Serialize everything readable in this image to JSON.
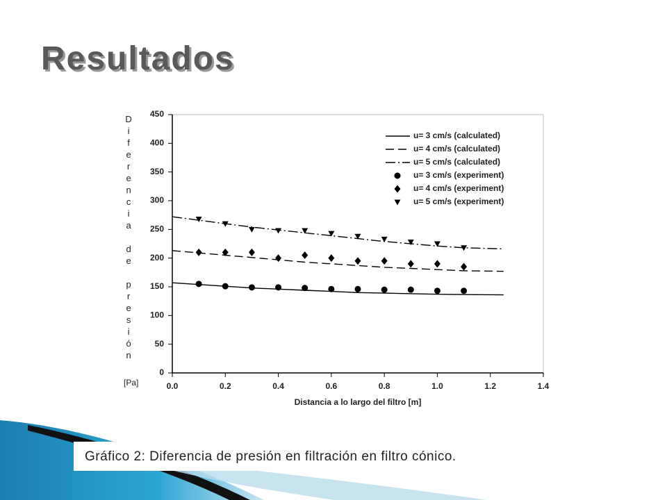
{
  "title": "Resultados",
  "caption": "Gráfico 2: Diferencia de presión en filtración en filtro cónico.",
  "chart_data": {
    "type": "line",
    "ylabel": "Diferencia de presión",
    "yunit": "[Pa]",
    "xlabel": "Distancia a lo largo del filtro [m]",
    "xlim": [
      0,
      1.4
    ],
    "ylim": [
      0,
      450
    ],
    "xticks": [
      {
        "value": 0,
        "label": "0.0"
      },
      0.2,
      0.4,
      0.6,
      0.8,
      {
        "value": 1,
        "label": "1.0"
      },
      1.2,
      1.4
    ],
    "yticks": [
      0,
      50,
      100,
      150,
      200,
      250,
      300,
      350,
      400,
      450
    ],
    "legend": "upper-right",
    "series": [
      {
        "name": "u= 3 cm/s (calculated)",
        "color": "#000000",
        "style": "solid",
        "x": [
          0,
          0.1,
          0.2,
          0.3,
          0.4,
          0.5,
          0.6,
          0.7,
          0.8,
          0.9,
          1.0,
          1.1,
          1.25
        ],
        "values": [
          157,
          154,
          151,
          148,
          146,
          144,
          142,
          140,
          139,
          138,
          137,
          136.5,
          136
        ]
      },
      {
        "name": "u= 4 cm/s (calculated)",
        "color": "#000000",
        "style": "dashed",
        "x": [
          0,
          0.1,
          0.2,
          0.3,
          0.4,
          0.5,
          0.6,
          0.7,
          0.8,
          0.9,
          1.0,
          1.1,
          1.25
        ],
        "values": [
          213,
          209,
          205,
          201,
          197,
          193,
          190,
          187,
          184,
          182,
          180,
          178,
          177
        ]
      },
      {
        "name": "u= 5 cm/s (calculated)",
        "color": "#000000",
        "style": "dashdot",
        "x": [
          0,
          0.1,
          0.2,
          0.3,
          0.4,
          0.5,
          0.6,
          0.7,
          0.8,
          0.9,
          1.0,
          1.1,
          1.25
        ],
        "values": [
          272,
          266,
          260,
          254,
          249,
          244,
          239,
          234,
          229,
          225,
          221,
          218,
          216
        ]
      },
      {
        "name": "u= 3 cm/s (experiment)",
        "color": "#000000",
        "marker": "circle",
        "x": [
          0.1,
          0.2,
          0.3,
          0.4,
          0.5,
          0.6,
          0.7,
          0.8,
          0.9,
          1.0,
          1.1
        ],
        "values": [
          155,
          151,
          149,
          149,
          148,
          146,
          146,
          145,
          145,
          143,
          143
        ]
      },
      {
        "name": "u= 4 cm/s (experiment)",
        "color": "#000000",
        "marker": "diamond",
        "x": [
          0.1,
          0.2,
          0.3,
          0.4,
          0.5,
          0.6,
          0.7,
          0.8,
          0.9,
          1.0,
          1.1
        ],
        "values": [
          210,
          210,
          210,
          200,
          205,
          200,
          195,
          195,
          190,
          190,
          185
        ]
      },
      {
        "name": "u= 5 cm/s (experiment)",
        "color": "#000000",
        "marker": "triangle-down",
        "x": [
          0.1,
          0.2,
          0.3,
          0.4,
          0.5,
          0.6,
          0.7,
          0.8,
          0.9,
          1.0,
          1.1
        ],
        "values": [
          268,
          260,
          250,
          248,
          248,
          243,
          238,
          233,
          228,
          225,
          218
        ]
      }
    ]
  }
}
